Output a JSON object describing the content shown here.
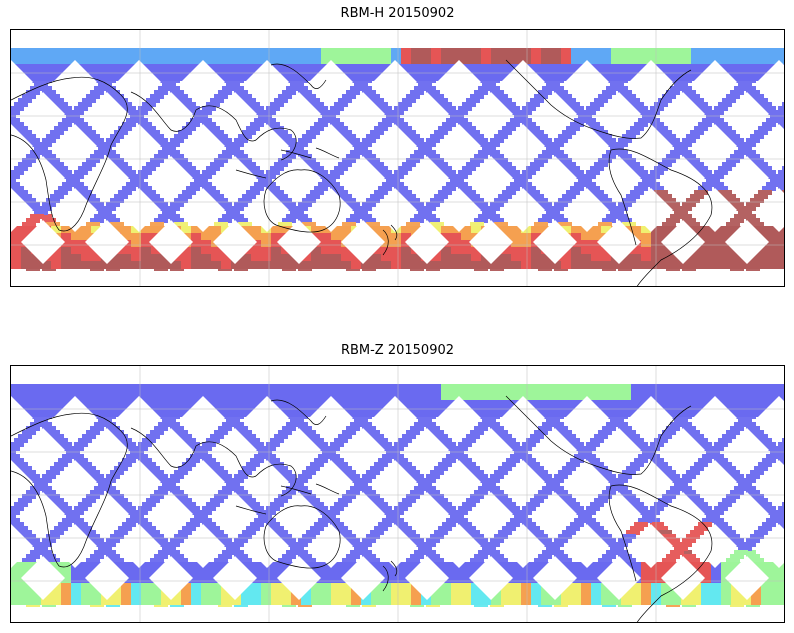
{
  "panels": [
    {
      "title": "RBM-H 20150902",
      "mode": "h"
    },
    {
      "title": "RBM-Z 20150902",
      "mode": "z"
    }
  ],
  "colormap": [
    "#6a6af0",
    "#5fa8f5",
    "#63e8f0",
    "#9ef59a",
    "#f0f070",
    "#f5a050",
    "#e55555",
    "#b05a5a"
  ],
  "grid": "on",
  "coastlines": "on"
}
